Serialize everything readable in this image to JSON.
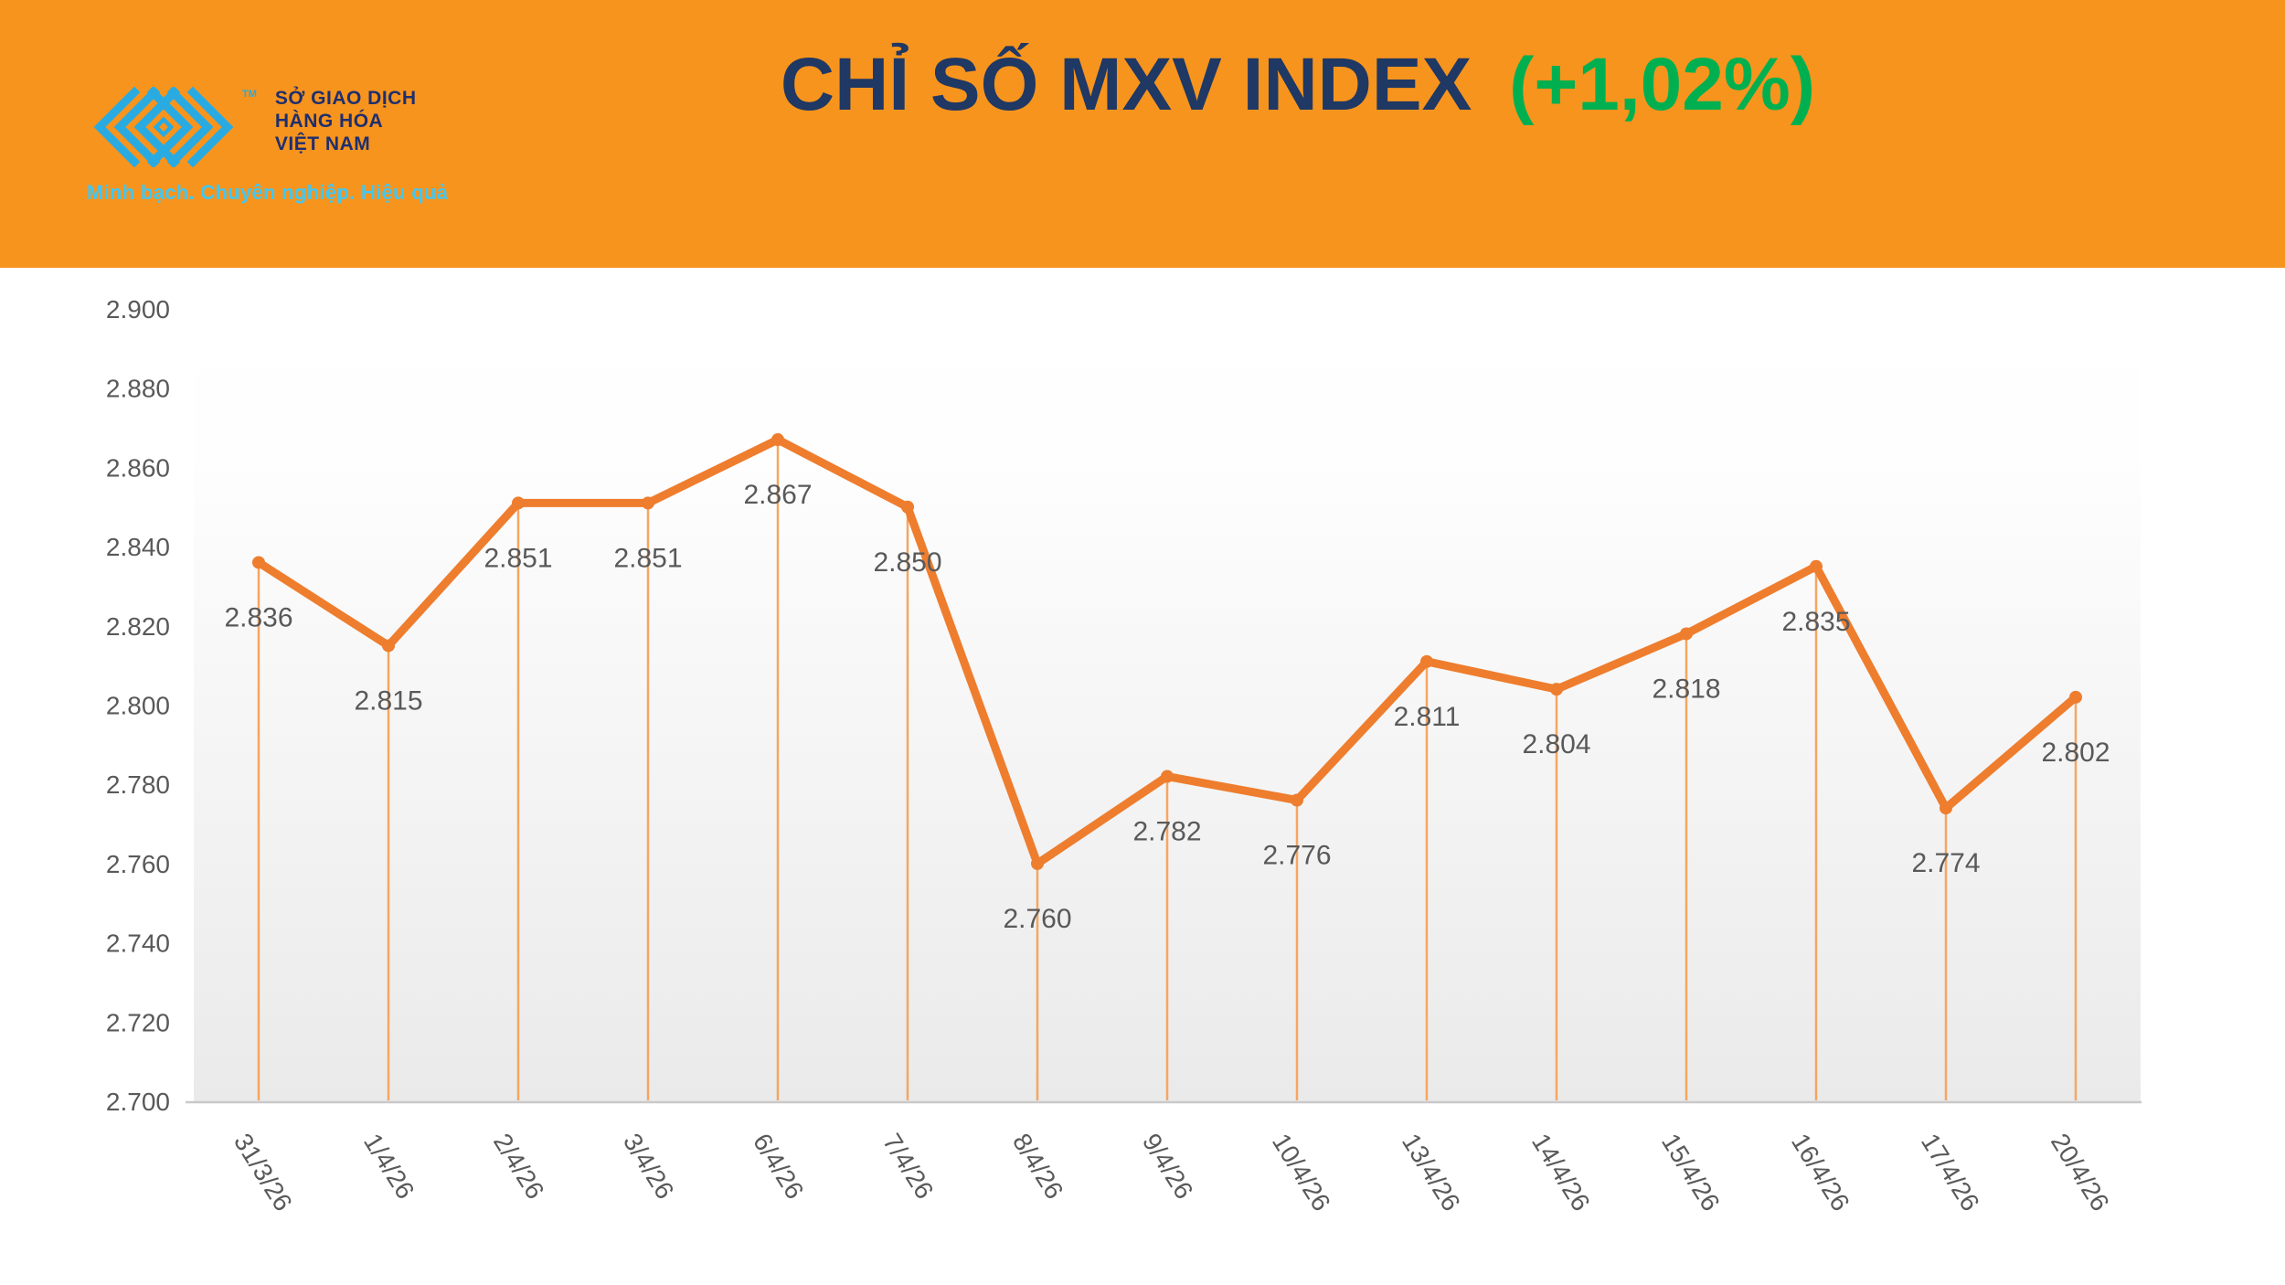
{
  "header": {
    "logo": {
      "tm": "TM",
      "org_lines": [
        "SỞ GIAO DỊCH",
        "HÀNG HÓA",
        "VIỆT NAM"
      ],
      "tagline": "Minh bạch. Chuyên nghiệp. Hiệu quả"
    },
    "title": {
      "main": "CHỈ SỐ MXV INDEX",
      "change": "(+1,02%)"
    }
  },
  "colors": {
    "header_bg": "#F7941E",
    "title_navy": "#1F3864",
    "change_green": "#00B050",
    "logo_cyan": "#29ABE2",
    "tagline_cyan": "#3FC8F5",
    "line_orange": "#EE7D2E",
    "drop_line_orange": "#F5A661",
    "label_gray": "#595959",
    "axis_line_gray": "#C9C9C9",
    "plot_gradient_bottom": "#EAEAEA"
  },
  "chart_data": {
    "type": "line",
    "title": "CHỈ SỐ MXV INDEX (+1,02%)",
    "categories": [
      "31/3/26",
      "1/4/26",
      "2/4/26",
      "3/4/26",
      "6/4/26",
      "7/4/26",
      "8/4/26",
      "9/4/26",
      "10/4/26",
      "13/4/26",
      "14/4/26",
      "15/4/26",
      "16/4/26",
      "17/4/26",
      "20/4/26"
    ],
    "values": [
      2836,
      2815,
      2851,
      2851,
      2867,
      2850,
      2760,
      2782,
      2776,
      2811,
      2804,
      2818,
      2835,
      2774,
      2802
    ],
    "value_labels": [
      "2.836",
      "2.815",
      "2.851",
      "2.851",
      "2.867",
      "2.850",
      "2.760",
      "2.782",
      "2.776",
      "2.811",
      "2.804",
      "2.818",
      "2.835",
      "2.774",
      "2.802"
    ],
    "y_ticks": [
      "2.700",
      "2.720",
      "2.740",
      "2.760",
      "2.780",
      "2.800",
      "2.820",
      "2.840",
      "2.860",
      "2.880",
      "2.900"
    ],
    "ylim": [
      2700,
      2900
    ],
    "xlabel": "",
    "ylabel": "",
    "grid": false,
    "legend": "none",
    "marker": "point",
    "drop_lines": true
  }
}
